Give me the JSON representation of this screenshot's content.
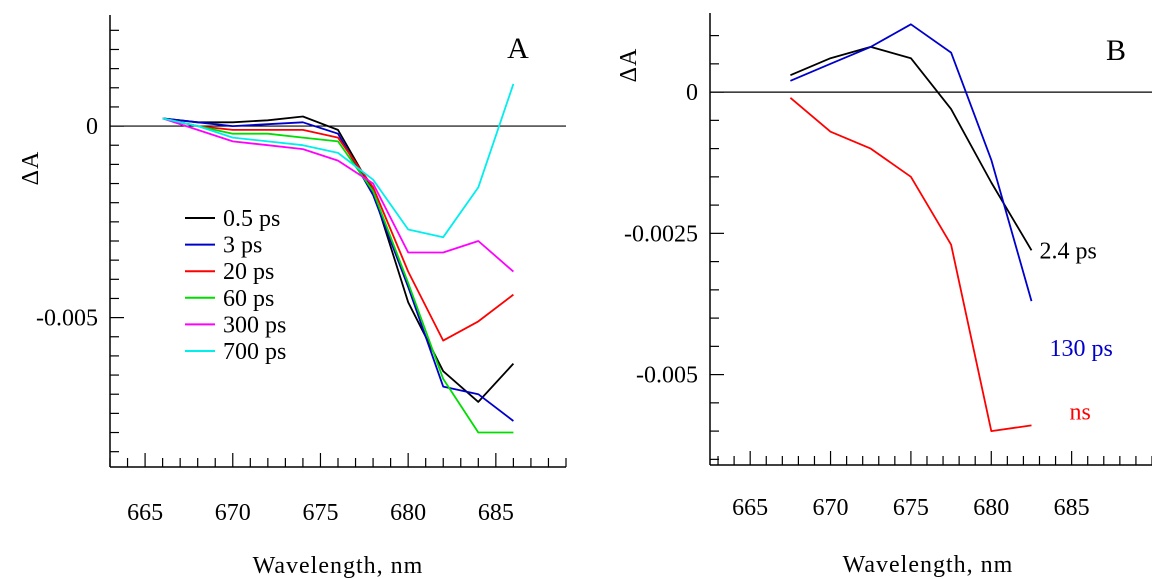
{
  "chart_data": [
    {
      "type": "line",
      "panel_label": "A",
      "xlabel": "Wavelength, nm",
      "ylabel": "ΔA",
      "xlim": [
        663,
        689
      ],
      "ylim": [
        -0.0089,
        0.0029
      ],
      "xticks": [
        665,
        670,
        675,
        680,
        685
      ],
      "xtick_labels": [
        "665",
        "670",
        "675",
        "680",
        "685"
      ],
      "yticks": [
        0,
        -0.005
      ],
      "ytick_labels": [
        "0",
        "-0.005"
      ],
      "zero_line": true,
      "legend_position": "center-left",
      "x": [
        666,
        668,
        670,
        672,
        674,
        676,
        678,
        680,
        682,
        684,
        686
      ],
      "series": [
        {
          "name": "0.5 ps",
          "color": "#000000",
          "values": [
            0.0002,
            0.0001,
            0.0001,
            0.00015,
            0.00025,
            -0.0001,
            -0.0017,
            -0.0046,
            -0.0064,
            -0.0072,
            -0.0062
          ]
        },
        {
          "name": "3 ps",
          "color": "#0000cc",
          "values": [
            0.0002,
            0.0001,
            0.0,
            5e-05,
            0.0001,
            -0.0002,
            -0.0018,
            -0.0042,
            -0.0068,
            -0.007,
            -0.0077
          ]
        },
        {
          "name": "20 ps",
          "color": "#ff0000",
          "values": [
            0.0002,
            0.0,
            -0.0001,
            -0.0001,
            -0.0001,
            -0.0003,
            -0.0016,
            -0.0038,
            -0.0056,
            -0.0051,
            -0.0044
          ]
        },
        {
          "name": "60 ps",
          "color": "#00dd00",
          "values": [
            0.0002,
            0.0,
            -0.0002,
            -0.0002,
            -0.0003,
            -0.0004,
            -0.0017,
            -0.0041,
            -0.0066,
            -0.008,
            -0.008
          ]
        },
        {
          "name": "300 ps",
          "color": "#ff00ff",
          "values": [
            0.0002,
            -0.0001,
            -0.0004,
            -0.0005,
            -0.0006,
            -0.0009,
            -0.0015,
            -0.0033,
            -0.0033,
            -0.003,
            -0.0038
          ]
        },
        {
          "name": "700 ps",
          "color": "#00eeee",
          "values": [
            0.0002,
            0.0,
            -0.0003,
            -0.0004,
            -0.0005,
            -0.0007,
            -0.0014,
            -0.0027,
            -0.0029,
            -0.0016,
            0.0011
          ]
        }
      ]
    },
    {
      "type": "line",
      "panel_label": "B",
      "xlabel": "Wavelength, nm",
      "ylabel": "ΔA",
      "xlim": [
        662.5,
        690
      ],
      "ylim": [
        -0.0066,
        0.0014
      ],
      "xticks": [
        665,
        670,
        675,
        680,
        685
      ],
      "xtick_labels": [
        "665",
        "670",
        "675",
        "680",
        "685"
      ],
      "yticks": [
        0,
        -0.0025,
        -0.005
      ],
      "ytick_labels": [
        "0",
        "-0.0025",
        "-0.005"
      ],
      "zero_line": true,
      "x": [
        667.5,
        670,
        672.5,
        675,
        677.5,
        680,
        682.5
      ],
      "series": [
        {
          "label": "2.4 ps",
          "color": "#000000",
          "values": [
            0.0003,
            0.0006,
            0.0008,
            0.0006,
            -0.0003,
            -0.0016,
            -0.0028
          ]
        },
        {
          "label": "130 ps",
          "color": "#0000cc",
          "values": [
            0.0002,
            0.0005,
            0.0008,
            0.0012,
            0.0007,
            -0.0012,
            -0.0037
          ]
        },
        {
          "label": "ns",
          "color": "#ff0000",
          "values": [
            -0.0001,
            -0.0007,
            -0.001,
            -0.0015,
            -0.0027,
            -0.006,
            -0.0059
          ]
        }
      ]
    }
  ]
}
